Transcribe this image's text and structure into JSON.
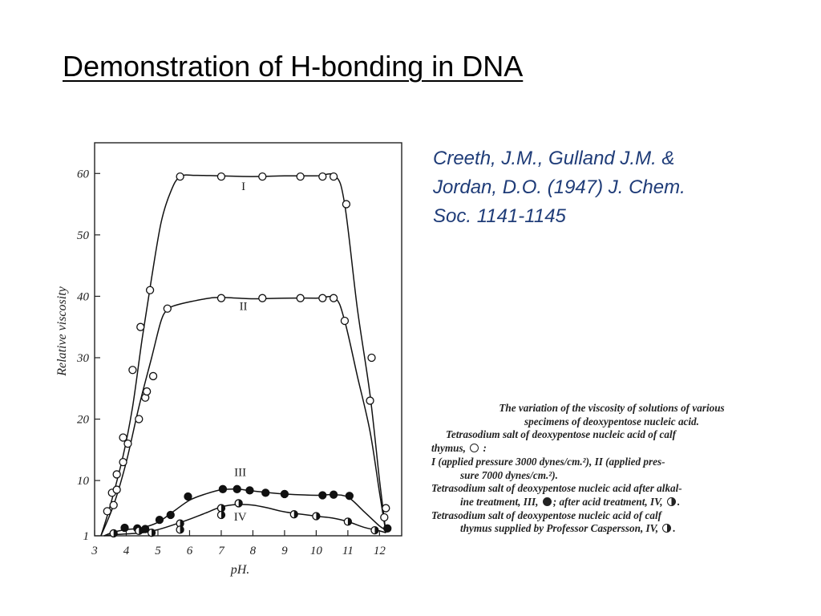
{
  "slide": {
    "title": "Demonstration of H-bonding in DNA",
    "citation_lines": [
      "Creeth, J.M., Gulland J.M. &",
      "Jordan, D.O. (1947) J. Chem.",
      "Soc. 1141-1145"
    ]
  },
  "caption": {
    "line1": "The variation of the viscosity of solutions of various",
    "line2": "specimens of deoxypentose nucleic acid.",
    "line3": "Tetrasodium salt of deoxypentose nucleic acid of calf",
    "line4": "thymus,",
    "line4_end": ":",
    "line5": "I (applied pressure 3000 dynes/cm.²), II (applied pres-",
    "line6": "sure 7000 dynes/cm.²).",
    "line7": "Tetrasodium salt of deoxypentose nucleic acid after alkal-",
    "line8": "ine treatment, III,",
    "line8_mid": "; after acid treatment, IV,",
    "line8_end": ".",
    "line9": "Tetrasodium salt of deoxypentose nucleic acid of calf",
    "line10": "thymus supplied by Professor Caspersson, IV,",
    "line10_end": "."
  },
  "chart_data": {
    "type": "line",
    "xlabel": "pH.",
    "ylabel": "Relative viscosity",
    "xlim": [
      3,
      12.7
    ],
    "ylim": [
      1,
      65
    ],
    "x_ticks": [
      3,
      4,
      5,
      6,
      7,
      8,
      9,
      10,
      11,
      12
    ],
    "y_ticks": [
      1,
      10,
      20,
      30,
      40,
      50,
      60
    ],
    "marker_colors": {
      "open": "#ffffff",
      "filled": "#111111",
      "stroke": "#111111"
    },
    "series": [
      {
        "name": "I",
        "marker": "open",
        "curve": [
          [
            3.2,
            1
          ],
          [
            3.5,
            6
          ],
          [
            3.9,
            14
          ],
          [
            4.2,
            22
          ],
          [
            4.5,
            33
          ],
          [
            4.8,
            43
          ],
          [
            5.1,
            52
          ],
          [
            5.4,
            57
          ],
          [
            5.7,
            59.5
          ],
          [
            6.2,
            59.7
          ],
          [
            7,
            59.6
          ],
          [
            8,
            59.5
          ],
          [
            9,
            59.6
          ],
          [
            10,
            59.6
          ],
          [
            10.6,
            59.6
          ],
          [
            10.9,
            55
          ],
          [
            11.3,
            38
          ],
          [
            11.7,
            24
          ],
          [
            12,
            10
          ],
          [
            12.2,
            1.5
          ]
        ],
        "points": [
          [
            3.4,
            5
          ],
          [
            3.55,
            8
          ],
          [
            3.7,
            11
          ],
          [
            3.9,
            17
          ],
          [
            4.2,
            28
          ],
          [
            4.45,
            35
          ],
          [
            4.75,
            41
          ],
          [
            5.7,
            59.5
          ],
          [
            7,
            59.5
          ],
          [
            8.3,
            59.5
          ],
          [
            9.5,
            59.5
          ],
          [
            10.2,
            59.5
          ],
          [
            10.55,
            59.5
          ],
          [
            10.95,
            55
          ],
          [
            11.75,
            30
          ],
          [
            12.15,
            4
          ]
        ]
      },
      {
        "name": "II",
        "marker": "open",
        "curve": [
          [
            3.2,
            1
          ],
          [
            3.6,
            6
          ],
          [
            4,
            13
          ],
          [
            4.4,
            22
          ],
          [
            4.8,
            30
          ],
          [
            5.1,
            36
          ],
          [
            5.3,
            37.8
          ],
          [
            5.6,
            38.6
          ],
          [
            6.5,
            39.6
          ],
          [
            7,
            39.8
          ],
          [
            8,
            39.6
          ],
          [
            9,
            39.7
          ],
          [
            10,
            39.7
          ],
          [
            10.6,
            39.7
          ],
          [
            10.9,
            36
          ],
          [
            11.3,
            27
          ],
          [
            11.7,
            18
          ],
          [
            12,
            8
          ],
          [
            12.2,
            1.5
          ]
        ],
        "points": [
          [
            3.6,
            6
          ],
          [
            3.7,
            8.5
          ],
          [
            3.9,
            13
          ],
          [
            4.05,
            16
          ],
          [
            4.4,
            20
          ],
          [
            4.6,
            23.5
          ],
          [
            4.65,
            24.5
          ],
          [
            4.85,
            27
          ],
          [
            5.3,
            38
          ],
          [
            7,
            39.7
          ],
          [
            8.3,
            39.7
          ],
          [
            9.5,
            39.7
          ],
          [
            10.2,
            39.7
          ],
          [
            10.55,
            39.7
          ],
          [
            10.9,
            36
          ],
          [
            11.7,
            23
          ],
          [
            12.2,
            5.5
          ]
        ]
      },
      {
        "name": "III",
        "marker": "filled",
        "curve": [
          [
            3.3,
            1
          ],
          [
            3.6,
            1.6
          ],
          [
            4,
            2
          ],
          [
            4.5,
            2.3
          ],
          [
            5,
            3.2
          ],
          [
            5.5,
            5
          ],
          [
            6,
            6.8
          ],
          [
            6.5,
            7.8
          ],
          [
            7,
            8.5
          ],
          [
            7.5,
            8.6
          ],
          [
            8,
            8.3
          ],
          [
            9,
            7.8
          ],
          [
            10,
            7.6
          ],
          [
            10.5,
            7.7
          ],
          [
            11,
            7.3
          ],
          [
            11.5,
            5
          ],
          [
            12,
            2.6
          ],
          [
            12.2,
            2
          ]
        ],
        "points": [
          [
            3.95,
            2.3
          ],
          [
            4.35,
            2.2
          ],
          [
            4.6,
            2.1
          ],
          [
            5.05,
            3.6
          ],
          [
            5.4,
            4.4
          ],
          [
            5.95,
            7.4
          ],
          [
            7.05,
            8.6
          ],
          [
            7.5,
            8.6
          ],
          [
            7.9,
            8.4
          ],
          [
            8.4,
            8
          ],
          [
            9,
            7.8
          ],
          [
            10.2,
            7.6
          ],
          [
            10.55,
            7.7
          ],
          [
            11.05,
            7.5
          ],
          [
            12.25,
            2.2
          ]
        ]
      },
      {
        "name": "IV",
        "marker": "half",
        "curve": [
          [
            3.3,
            1
          ],
          [
            3.7,
            1.2
          ],
          [
            4.5,
            1.5
          ],
          [
            5,
            2
          ],
          [
            5.5,
            2.8
          ],
          [
            6,
            3.7
          ],
          [
            6.5,
            4.7
          ],
          [
            7,
            5.7
          ],
          [
            7.5,
            6.1
          ],
          [
            8,
            6
          ],
          [
            8.5,
            5.5
          ],
          [
            9,
            4.9
          ],
          [
            10,
            4.2
          ],
          [
            10.5,
            3.9
          ],
          [
            11,
            3.3
          ],
          [
            11.5,
            2.4
          ],
          [
            12,
            1.8
          ],
          [
            12.2,
            1.5
          ]
        ],
        "points": [
          [
            3.6,
            1.4
          ],
          [
            4.4,
            1.8
          ],
          [
            4.8,
            1.5
          ],
          [
            5.7,
            3
          ],
          [
            5.7,
            2
          ],
          [
            7,
            5.5
          ],
          [
            7,
            4.4
          ],
          [
            7.55,
            6.3
          ],
          [
            9.3,
            4.5
          ],
          [
            10,
            4.2
          ],
          [
            11,
            3.3
          ],
          [
            11.85,
            1.9
          ]
        ]
      }
    ],
    "curve_labels": [
      {
        "text": "I",
        "x": 7.7,
        "y": 57.3
      },
      {
        "text": "II",
        "x": 7.7,
        "y": 37.8
      },
      {
        "text": "III",
        "x": 7.6,
        "y": 10.7
      },
      {
        "text": "IV",
        "x": 7.6,
        "y": 3.5
      }
    ]
  }
}
